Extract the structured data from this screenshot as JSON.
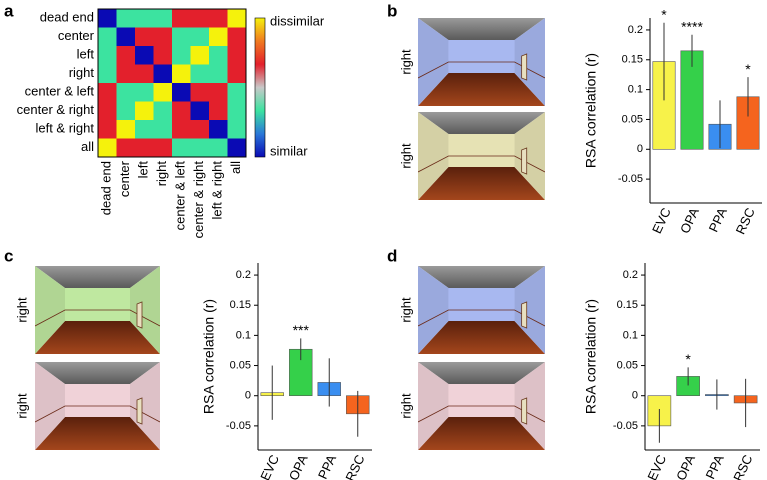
{
  "panel_labels": [
    "a",
    "b",
    "c",
    "d"
  ],
  "image_captions": [
    [
      "right",
      "right"
    ],
    [
      "right",
      "right"
    ],
    [
      "right",
      "right"
    ]
  ],
  "chart_data": [
    {
      "type": "heatmap",
      "row_labels": [
        "dead end",
        "center",
        "left",
        "right",
        "center & left",
        "center & right",
        "left & right",
        "all"
      ],
      "col_labels": [
        "dead end",
        "center",
        "left",
        "right",
        "center & left",
        "center & right",
        "left & right",
        "all"
      ],
      "values": [
        [
          0,
          1,
          1,
          1,
          2,
          2,
          2,
          3
        ],
        [
          1,
          0,
          2,
          2,
          1,
          1,
          3,
          2
        ],
        [
          1,
          2,
          0,
          2,
          1,
          3,
          1,
          2
        ],
        [
          1,
          2,
          2,
          0,
          3,
          1,
          1,
          2
        ],
        [
          2,
          1,
          1,
          3,
          0,
          2,
          2,
          1
        ],
        [
          2,
          1,
          3,
          1,
          2,
          0,
          2,
          1
        ],
        [
          2,
          3,
          1,
          1,
          2,
          2,
          0,
          1
        ],
        [
          3,
          2,
          2,
          2,
          1,
          1,
          1,
          0
        ]
      ],
      "clim": [
        0,
        3
      ],
      "colormap": [
        "#0a0ab4",
        "#2a78d8",
        "#3ce3a0",
        "#c8c8c8",
        "#e3202c",
        "#f07a20",
        "#f5f20c"
      ],
      "colorbar_labels": {
        "max": "dissimilar",
        "min": "similar"
      }
    },
    {
      "type": "bar",
      "ylabel": "RSA correlation (r)",
      "categories": [
        "EVC",
        "OPA",
        "PPA",
        "RSC"
      ],
      "values": [
        0.147,
        0.165,
        0.042,
        0.088
      ],
      "errors": [
        0.065,
        0.027,
        0.04,
        0.033
      ],
      "colors": [
        "#f7f24a",
        "#35d04a",
        "#3a8ef0",
        "#f5641e"
      ],
      "significance": [
        "*",
        "****",
        null,
        "*"
      ],
      "ylim": [
        -0.09,
        0.22
      ],
      "yticks": [
        -0.05,
        0,
        0.05,
        0.1,
        0.15,
        0.2
      ]
    },
    {
      "type": "bar",
      "ylabel": "RSA correlation (r)",
      "categories": [
        "EVC",
        "OPA",
        "PPA",
        "RSC"
      ],
      "values": [
        0.005,
        0.077,
        0.022,
        -0.03
      ],
      "errors": [
        0.045,
        0.018,
        0.04,
        0.038
      ],
      "colors": [
        "#f7f24a",
        "#35d04a",
        "#3a8ef0",
        "#f5641e"
      ],
      "significance": [
        null,
        "***",
        null,
        null
      ],
      "ylim": [
        -0.09,
        0.22
      ],
      "yticks": [
        -0.05,
        0,
        0.05,
        0.1,
        0.15,
        0.2
      ]
    },
    {
      "type": "bar",
      "ylabel": "RSA correlation (r)",
      "categories": [
        "EVC",
        "OPA",
        "PPA",
        "RSC"
      ],
      "values": [
        -0.05,
        0.032,
        0.002,
        -0.012
      ],
      "errors": [
        0.028,
        0.015,
        0.025,
        0.04
      ],
      "colors": [
        "#f7f24a",
        "#35d04a",
        "#3a8ef0",
        "#f5641e"
      ],
      "significance": [
        null,
        "*",
        null,
        null
      ],
      "ylim": [
        -0.09,
        0.22
      ],
      "yticks": [
        -0.05,
        0,
        0.05,
        0.1,
        0.15,
        0.2
      ]
    }
  ]
}
